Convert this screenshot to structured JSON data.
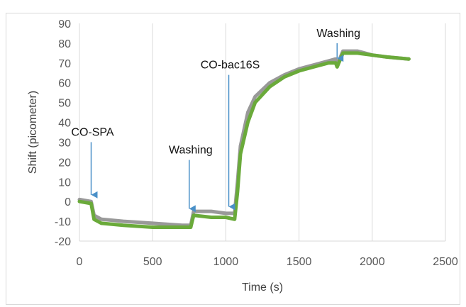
{
  "chart_data": {
    "type": "line",
    "title": "",
    "xlabel": "Time (s)",
    "ylabel": "Shift (picometer)",
    "xlim": [
      0,
      2500
    ],
    "ylim": [
      -20,
      90
    ],
    "x_ticks": [
      0,
      500,
      1000,
      1500,
      2000,
      2500
    ],
    "y_ticks": [
      -20,
      -10,
      0,
      10,
      20,
      30,
      40,
      50,
      60,
      70,
      80,
      90
    ],
    "x_tick_labels": [
      "0",
      "500",
      "1000",
      "1500",
      "2000",
      "2500"
    ],
    "y_tick_labels": [
      "-20",
      "-10",
      "0",
      "10",
      "20",
      "30",
      "40",
      "50",
      "60",
      "70",
      "80",
      "90"
    ],
    "grid": "vertical",
    "legend": "none",
    "series": [
      {
        "color": "#999999",
        "x": [
          0,
          80,
          100,
          150,
          300,
          500,
          700,
          760,
          780,
          900,
          1000,
          1060,
          1080,
          1100,
          1150,
          1200,
          1300,
          1400,
          1500,
          1600,
          1700,
          1750,
          1760,
          1800,
          1900,
          2000,
          2100,
          2250
        ],
        "y": [
          1,
          0,
          -7,
          -9,
          -10,
          -11,
          -12,
          -12,
          -5,
          -5,
          -6,
          -6,
          10,
          28,
          45,
          53,
          60,
          64,
          67,
          69,
          71,
          72,
          69,
          76,
          76,
          74,
          73,
          72
        ]
      },
      {
        "color": "#6aaa3a",
        "x": [
          0,
          80,
          100,
          150,
          300,
          500,
          700,
          760,
          780,
          900,
          1000,
          1060,
          1080,
          1100,
          1150,
          1200,
          1300,
          1400,
          1500,
          1600,
          1700,
          1750,
          1760,
          1800,
          1900,
          2000,
          2100,
          2250
        ],
        "y": [
          0,
          -1,
          -9,
          -11,
          -12,
          -13,
          -13,
          -13,
          -7,
          -8,
          -8,
          -9,
          5,
          24,
          40,
          50,
          58,
          63,
          66,
          68,
          70,
          70,
          68,
          75,
          75,
          74,
          73,
          72
        ]
      }
    ],
    "annotations": [
      {
        "text": "CO-SPA",
        "arrow_x": 80,
        "arrow_y_top": 30,
        "arrow_y_tip": 3
      },
      {
        "text": "Washing",
        "arrow_x": 750,
        "arrow_y_top": 21,
        "arrow_y_tip": -4
      },
      {
        "text": "CO-bac16S",
        "arrow_x": 1020,
        "arrow_y_top": 64,
        "arrow_y_tip": -3
      },
      {
        "text": "Washing",
        "arrow_x": 1760,
        "arrow_y_top": 80,
        "arrow_y_tip": 72
      }
    ],
    "arrow_color": "#4a90c8"
  }
}
